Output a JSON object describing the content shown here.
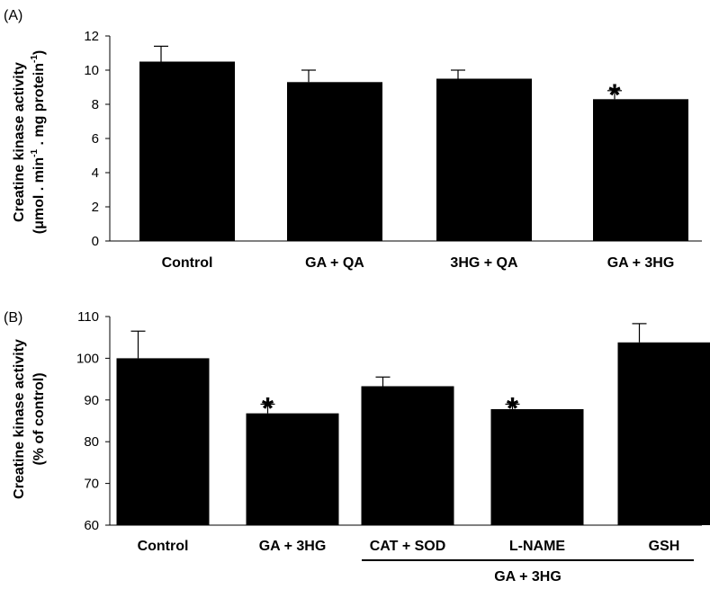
{
  "chart_data": [
    {
      "type": "bar",
      "panel_label": "(A)",
      "ylabel_line1": "Creatine kinase activity",
      "ylabel_line2_parts": [
        "(μmol . min",
        "-1",
        " . mg protein",
        "-1",
        ")"
      ],
      "ylim": [
        0,
        12
      ],
      "yticks": [
        "0",
        "2",
        "4",
        "6",
        "8",
        "10",
        "12"
      ],
      "categories": [
        "Control",
        "GA + QA",
        "3HG + QA",
        "GA + 3HG"
      ],
      "values": [
        10.5,
        9.3,
        9.5,
        8.3
      ],
      "errors": [
        0.9,
        0.7,
        0.5,
        0.5
      ],
      "significance": [
        "",
        "",
        "",
        "*"
      ],
      "color": "#000000"
    },
    {
      "type": "bar",
      "panel_label": "(B)",
      "ylabel_line1": "Creatine kinase activity",
      "ylabel_line2": "(%  of control)",
      "ylim": [
        60,
        110
      ],
      "yticks": [
        "60",
        "70",
        "80",
        "90",
        "100",
        "110"
      ],
      "categories": [
        "Control",
        "GA + 3HG",
        "CAT + SOD",
        "L-NAME",
        "GSH"
      ],
      "values": [
        100,
        86.8,
        93.3,
        87.8,
        103.8
      ],
      "errors": [
        6.5,
        2.2,
        2.2,
        1.2,
        4.5
      ],
      "significance": [
        "",
        "*",
        "",
        "*",
        ""
      ],
      "group_label": "GA + 3HG",
      "color": "#000000"
    }
  ]
}
